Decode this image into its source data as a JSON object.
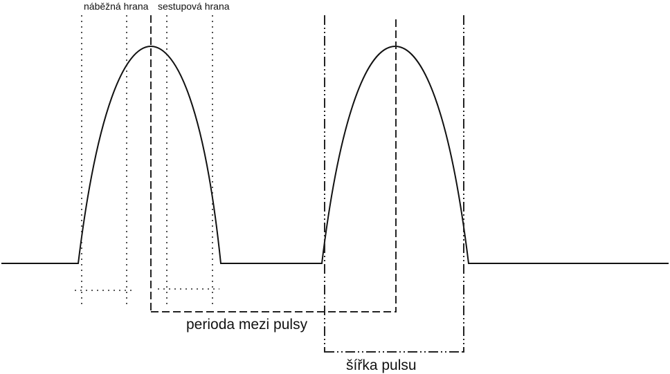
{
  "labels": {
    "rising_edge": "náběžná hrana",
    "falling_edge": "sestupová hrana",
    "period": "perioda mezi pulsy",
    "pulse_width": "šířka pulsu"
  },
  "colors": {
    "line": "#111111",
    "background": "#ffffff"
  }
}
